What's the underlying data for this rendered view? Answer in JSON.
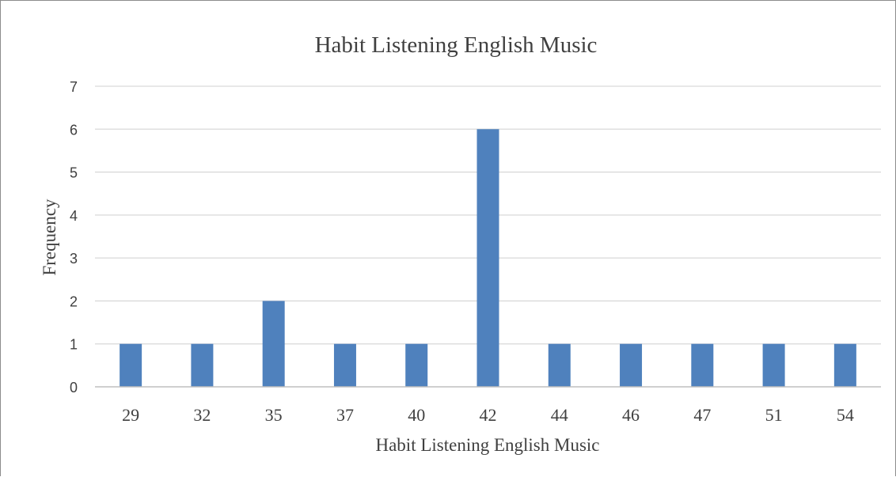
{
  "chart_data": {
    "type": "bar",
    "title": "Habit Listening English Music",
    "xlabel": "Habit Listening English Music",
    "ylabel": "Frequency",
    "categories": [
      "29",
      "32",
      "35",
      "37",
      "40",
      "42",
      "44",
      "46",
      "47",
      "51",
      "54"
    ],
    "values": [
      1,
      1,
      2,
      1,
      1,
      6,
      1,
      1,
      1,
      1,
      1
    ],
    "ylim": [
      0,
      7
    ],
    "yticks": [
      "0",
      "1",
      "2",
      "3",
      "4",
      "5",
      "6",
      "7"
    ],
    "grid": true,
    "legend": "none",
    "colors": {
      "bar": "#4F81BD",
      "grid": "#d9d9d9",
      "axis": "#bfbfbf",
      "text": "#404040",
      "title": "#404040"
    }
  }
}
